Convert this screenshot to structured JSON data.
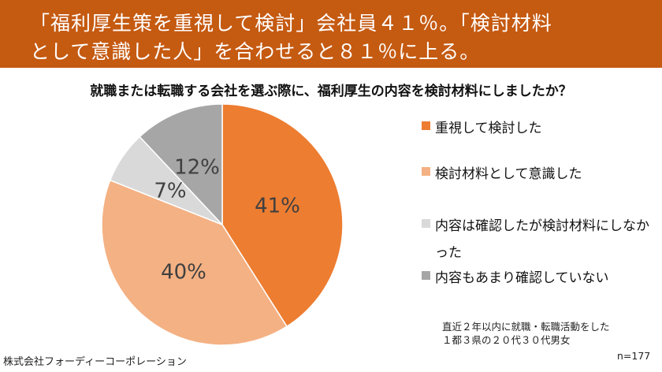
{
  "banner": {
    "line1": "「福利厚生策を重視して検討」会社員４１％。「検討材料",
    "line2": "として意識した人」を合わせると８１％に上る。"
  },
  "chart_data": {
    "type": "pie",
    "title": "就職または転職する会社を選ぶ際に、福利厚生の内容を検討材料にしましたか？",
    "slices": [
      {
        "label": "重視して検討した",
        "value": 41,
        "display": "41%",
        "color": "#ED7D31"
      },
      {
        "label": "検討材料として意識した",
        "value": 40,
        "display": "40%",
        "color": "#F4B183"
      },
      {
        "label": "内容は確認したが検討材料にしなかった",
        "value": 7,
        "display": "7%",
        "color": "#D9D9D9"
      },
      {
        "label": "内容もあまり確認していない",
        "value": 12,
        "display": "12%",
        "color": "#A6A6A6"
      }
    ],
    "legend_position": "right",
    "n_label": "n=177"
  },
  "legend": {
    "item1": "重視して検討した",
    "item2": "検討材料として意識した",
    "item3": "内容は確認したが検討材料にしなかった",
    "item4": "内容もあまり確認していない"
  },
  "note": {
    "line1": "直近２年以内に就職・転職活動をした",
    "line2": "１都３県の２０代３０代男女"
  },
  "footer": "株式会社フォーディーコーポレーション"
}
